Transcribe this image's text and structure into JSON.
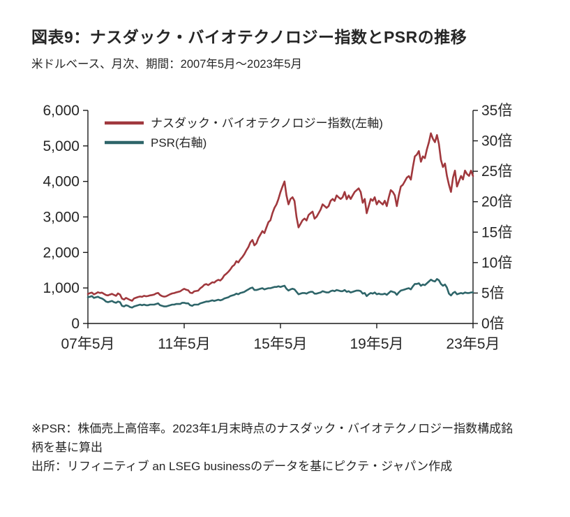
{
  "header": {
    "title": "図表9：ナスダック・バイオテクノロジー指数とPSRの推移",
    "subtitle": "米ドルベース、月次、期間：2007年5月～2023年5月"
  },
  "chart_data": {
    "type": "line",
    "title": "図表9：ナスダック・バイオテクノロジー指数とPSRの推移",
    "x_frequency": "monthly",
    "x_range": [
      "2007年5月",
      "2023年5月"
    ],
    "x_tick_indices": [
      0,
      48,
      96,
      144,
      192
    ],
    "x_tick_labels": [
      "07年5月",
      "11年5月",
      "15年5月",
      "19年5月",
      "23年5月"
    ],
    "grid": "off",
    "legend_position": "top-left-inside",
    "left_axis": {
      "min": 0,
      "max": 6000,
      "tick_values": [
        0,
        1000,
        2000,
        3000,
        4000,
        5000,
        6000
      ],
      "tick_labels": [
        "0",
        "1,000",
        "2,000",
        "3,000",
        "4,000",
        "5,000",
        "6,000"
      ]
    },
    "right_axis": {
      "min": 0,
      "max": 35,
      "tick_values": [
        0,
        5,
        10,
        15,
        20,
        25,
        30,
        35
      ],
      "tick_labels": [
        "0倍",
        "5倍",
        "10倍",
        "15倍",
        "20倍",
        "25倍",
        "30倍",
        "35倍"
      ]
    },
    "series": [
      {
        "name": "ナスダック・バイオテクノロジー指数(左軸)",
        "axis": "left",
        "color": "#A0383D",
        "values": [
          830,
          855,
          870,
          820,
          845,
          880,
          860,
          870,
          835,
          800,
          790,
          815,
          835,
          805,
          780,
          845,
          815,
          700,
          675,
          720,
          690,
          660,
          640,
          705,
          725,
          745,
          760,
          750,
          780,
          765,
          775,
          790,
          800,
          815,
          845,
          860,
          800,
          770,
          755,
          765,
          795,
          825,
          845,
          855,
          875,
          890,
          905,
          945,
          975,
          950,
          935,
          865,
          855,
          905,
          915,
          925,
          990,
          1030,
          1090,
          1110,
          1080,
          1120,
          1160,
          1150,
          1200,
          1230,
          1210,
          1265,
          1355,
          1400,
          1455,
          1520,
          1605,
          1650,
          1755,
          1720,
          1805,
          1870,
          1955,
          2060,
          2150,
          2285,
          2350,
          2200,
          2255,
          2405,
          2505,
          2600,
          2545,
          2705,
          2855,
          2905,
          3105,
          3255,
          3355,
          3505,
          3700,
          3855,
          4000,
          3605,
          3355,
          3505,
          3555,
          3450,
          3000,
          2705,
          2805,
          2905,
          2955,
          2900,
          3055,
          3105,
          3150,
          2950,
          3005,
          3105,
          3205,
          3355,
          3305,
          3255,
          3305,
          3455,
          3505,
          3450,
          3605,
          3550,
          3505,
          3555,
          3705,
          3500,
          3605,
          3505,
          3605,
          3705,
          3755,
          3805,
          3700,
          3400,
          3505,
          3105,
          3305,
          3505,
          3455,
          3555,
          3355,
          3455,
          3400,
          3350,
          3455,
          3305,
          3555,
          3755,
          3705,
          3605,
          3305,
          3605,
          3855,
          3905,
          4005,
          4105,
          4150,
          4050,
          4405,
          4705,
          4755,
          4855,
          4555,
          4705,
          4655,
          4905,
          5105,
          5355,
          5200,
          5105,
          5305,
          5055,
          4605,
          4405,
          4505,
          4155,
          3905,
          3705,
          4105,
          4305,
          3855,
          4005,
          4155,
          4055,
          4305,
          4205,
          4155,
          4305,
          4150
        ]
      },
      {
        "name": "PSR(右軸)",
        "axis": "right",
        "color": "#2E6569",
        "values": [
          4.3,
          4.4,
          4.5,
          4.2,
          4.3,
          4.4,
          4.2,
          4.1,
          3.9,
          3.6,
          3.5,
          3.6,
          3.7,
          3.5,
          3.4,
          3.6,
          3.5,
          2.9,
          2.8,
          3.0,
          2.9,
          2.7,
          2.6,
          2.8,
          2.9,
          3.0,
          3.1,
          3.0,
          3.1,
          3.0,
          3.0,
          3.1,
          3.1,
          3.1,
          3.2,
          3.3,
          3.0,
          2.9,
          2.8,
          2.8,
          2.9,
          3.0,
          3.1,
          3.1,
          3.2,
          3.2,
          3.2,
          3.4,
          3.4,
          3.3,
          3.3,
          3.0,
          2.9,
          3.1,
          3.1,
          3.1,
          3.3,
          3.4,
          3.5,
          3.6,
          3.6,
          3.7,
          3.8,
          3.7,
          3.8,
          3.9,
          3.8,
          3.9,
          4.1,
          4.2,
          4.3,
          4.5,
          4.6,
          4.7,
          4.9,
          4.8,
          5.0,
          5.1,
          5.2,
          5.4,
          5.6,
          5.8,
          5.9,
          5.5,
          5.5,
          5.6,
          5.7,
          5.8,
          5.6,
          5.7,
          5.8,
          5.8,
          5.9,
          6.0,
          6.0,
          6.1,
          6.0,
          6.1,
          6.2,
          5.7,
          5.4,
          5.6,
          5.7,
          5.6,
          5.2,
          4.8,
          4.9,
          5.0,
          5.0,
          4.9,
          5.1,
          5.2,
          5.2,
          4.9,
          4.9,
          5.0,
          5.1,
          5.3,
          5.2,
          5.1,
          5.1,
          5.3,
          5.4,
          5.3,
          5.5,
          5.4,
          5.3,
          5.3,
          5.5,
          5.2,
          5.3,
          5.1,
          5.2,
          5.3,
          5.4,
          5.4,
          5.3,
          4.9,
          5.0,
          4.5,
          4.8,
          5.0,
          4.9,
          5.1,
          4.8,
          4.9,
          4.8,
          4.8,
          4.9,
          4.7,
          5.0,
          5.3,
          5.2,
          5.1,
          4.7,
          5.1,
          5.4,
          5.5,
          5.6,
          5.7,
          5.8,
          5.6,
          6.1,
          6.5,
          6.5,
          6.6,
          6.2,
          6.4,
          6.3,
          6.6,
          6.9,
          7.2,
          7.0,
          6.9,
          7.3,
          7.1,
          6.5,
          6.2,
          6.4,
          5.9,
          4.9,
          4.6,
          5.0,
          5.2,
          4.8,
          4.9,
          5.0,
          4.9,
          5.1,
          5.0,
          5.0,
          5.1,
          5.1
        ]
      }
    ]
  },
  "footnotes": {
    "note": "※PSR：株価売上高倍率。2023年1月末時点のナスダック・バイオテクノロジー指数構成銘柄を基に算出",
    "source": "出所：リフィニティブ an LSEG businessのデータを基にピクテ・ジャパン作成"
  }
}
